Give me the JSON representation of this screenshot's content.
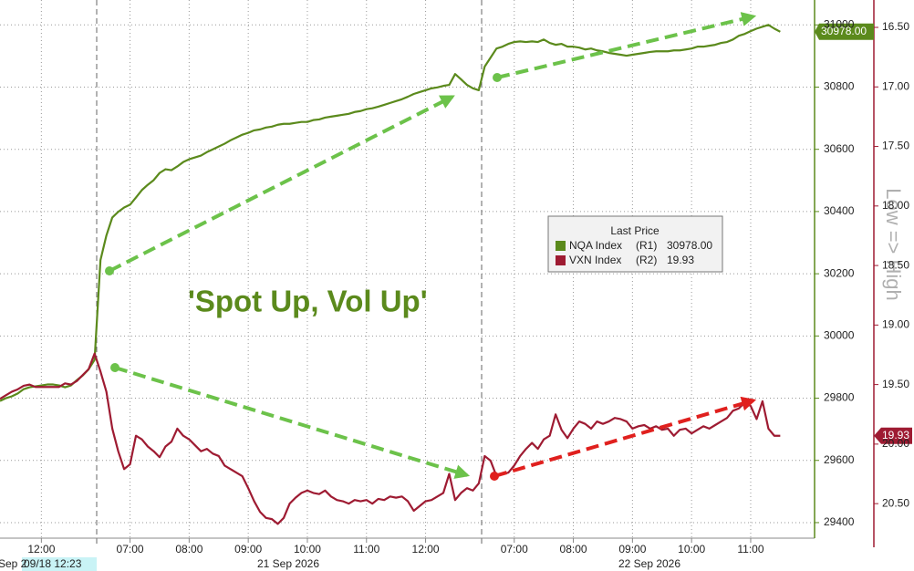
{
  "chart_data": {
    "type": "line",
    "annotation": "'Spot Up, Vol Up'",
    "y2label": "Low => High",
    "legend_title": "Last Price",
    "date_labels": [
      "Sep 2",
      "09/18 12:23",
      "21 Sep 2026",
      "22 Sep 2026"
    ],
    "grid": true,
    "categories": [
      null,
      null,
      null,
      null,
      null,
      null,
      null,
      "12:00",
      null,
      null,
      null,
      null,
      null,
      null,
      null,
      null,
      null,
      null,
      null,
      null,
      null,
      null,
      "07:00",
      null,
      null,
      null,
      null,
      null,
      null,
      null,
      null,
      null,
      "08:00",
      null,
      null,
      null,
      null,
      null,
      null,
      null,
      null,
      null,
      "09:00",
      null,
      null,
      null,
      null,
      null,
      null,
      null,
      null,
      null,
      "10:00",
      null,
      null,
      null,
      null,
      null,
      null,
      null,
      null,
      null,
      "11:00",
      null,
      null,
      null,
      null,
      null,
      null,
      null,
      null,
      null,
      "12:00",
      null,
      null,
      null,
      null,
      null,
      null,
      null,
      null,
      null,
      null,
      null,
      null,
      null,
      null,
      "07:00",
      null,
      null,
      null,
      null,
      null,
      null,
      null,
      null,
      null,
      "08:00",
      null,
      null,
      null,
      null,
      null,
      null,
      null,
      null,
      null,
      "09:00",
      null,
      null,
      null,
      null,
      null,
      null,
      null,
      null,
      null,
      "10:00",
      null,
      null,
      null,
      null,
      null,
      null,
      null,
      null,
      null,
      "11:00",
      null,
      null,
      null,
      null,
      null
    ],
    "ylim": [
      29350,
      31080
    ],
    "yticks": [
      29400,
      29600,
      29800,
      30000,
      30200,
      30400,
      30600,
      30800,
      31000
    ],
    "y2lim": [
      20.79,
      16.27
    ],
    "y2ticks": [
      {
        "value": 16.5,
        "label": "16.50"
      },
      {
        "value": 17,
        "label": "17.00"
      },
      {
        "value": 17.5,
        "label": "17.50"
      },
      {
        "value": 18,
        "label": "18.00"
      },
      {
        "value": 18.5,
        "label": "18.50"
      },
      {
        "value": 19,
        "label": "19.00"
      },
      {
        "value": 19.5,
        "label": "19.50"
      },
      {
        "value": 20,
        "label": "20.00"
      },
      {
        "value": 20.5,
        "label": "20.50"
      }
    ],
    "series": [
      {
        "name": "NQA Index",
        "legend_tag": "(R1)",
        "last_label": "30978.00",
        "color": "#5b8a1c",
        "axis": "y",
        "values": [
          29791,
          29800,
          29806,
          29815,
          29829,
          29835,
          29838,
          29841,
          29844,
          29844,
          29841,
          29835,
          29841,
          29858,
          29873,
          29893,
          29923,
          30244,
          30323,
          30381,
          30399,
          30413,
          30422,
          30445,
          30469,
          30486,
          30501,
          30524,
          30536,
          30533,
          30545,
          30559,
          30568,
          30574,
          30580,
          30591,
          30600,
          30609,
          30618,
          30629,
          30638,
          30647,
          30653,
          30661,
          30664,
          30670,
          30673,
          30679,
          30682,
          30682,
          30685,
          30688,
          30688,
          30694,
          30696,
          30702,
          30705,
          30708,
          30711,
          30714,
          30720,
          30723,
          30729,
          30732,
          30737,
          30743,
          30749,
          30755,
          30761,
          30769,
          30778,
          30784,
          30790,
          30796,
          30799,
          30804,
          30807,
          30842,
          30825,
          30807,
          30796,
          30790,
          30866,
          30895,
          30924,
          30930,
          30939,
          30945,
          30947,
          30945,
          30947,
          30945,
          30953,
          30942,
          30936,
          30939,
          30930,
          30930,
          30927,
          30921,
          30924,
          30918,
          30915,
          30910,
          30907,
          30904,
          30901,
          30904,
          30907,
          30910,
          30913,
          30915,
          30915,
          30915,
          30918,
          30918,
          30921,
          30924,
          30930,
          30930,
          30933,
          30936,
          30942,
          30945,
          30953,
          30965,
          30971,
          30980,
          30988,
          30994,
          31000,
          30988,
          30978
        ]
      },
      {
        "name": "VXN Index",
        "legend_tag": "(R2)",
        "last_label": "19.93",
        "color": "#9e1b32",
        "axis": "y2",
        "values": [
          19.62,
          19.59,
          19.56,
          19.54,
          19.51,
          19.5,
          19.52,
          19.52,
          19.52,
          19.52,
          19.52,
          19.49,
          19.5,
          19.47,
          19.42,
          19.37,
          19.24,
          19.39,
          19.56,
          19.87,
          20.06,
          20.21,
          20.17,
          19.93,
          19.96,
          20.02,
          20.06,
          20.11,
          20.02,
          19.98,
          19.87,
          19.93,
          19.96,
          20.01,
          20.06,
          20.04,
          20.08,
          20.1,
          20.18,
          20.21,
          20.24,
          20.27,
          20.37,
          20.48,
          20.57,
          20.62,
          20.63,
          20.67,
          20.62,
          20.5,
          20.45,
          20.41,
          20.39,
          20.41,
          20.42,
          20.39,
          20.44,
          20.47,
          20.48,
          20.5,
          20.47,
          20.48,
          20.47,
          20.5,
          20.46,
          20.47,
          20.44,
          20.45,
          20.44,
          20.48,
          20.56,
          20.52,
          20.48,
          20.47,
          20.44,
          20.41,
          20.25,
          20.47,
          20.41,
          20.37,
          20.39,
          20.33,
          20.1,
          20.14,
          20.27,
          20.25,
          20.24,
          20.18,
          20.1,
          20.04,
          19.99,
          20.04,
          19.96,
          19.93,
          19.75,
          19.88,
          19.95,
          19.87,
          19.81,
          19.83,
          19.87,
          19.81,
          19.83,
          19.81,
          19.78,
          19.79,
          19.81,
          19.87,
          19.85,
          19.84,
          19.87,
          19.85,
          19.88,
          19.87,
          19.93,
          19.88,
          19.87,
          19.91,
          19.88,
          19.85,
          19.87,
          19.84,
          19.81,
          19.78,
          19.72,
          19.7,
          19.65,
          19.68,
          19.79,
          19.64,
          19.87,
          19.93,
          19.93
        ]
      }
    ]
  }
}
